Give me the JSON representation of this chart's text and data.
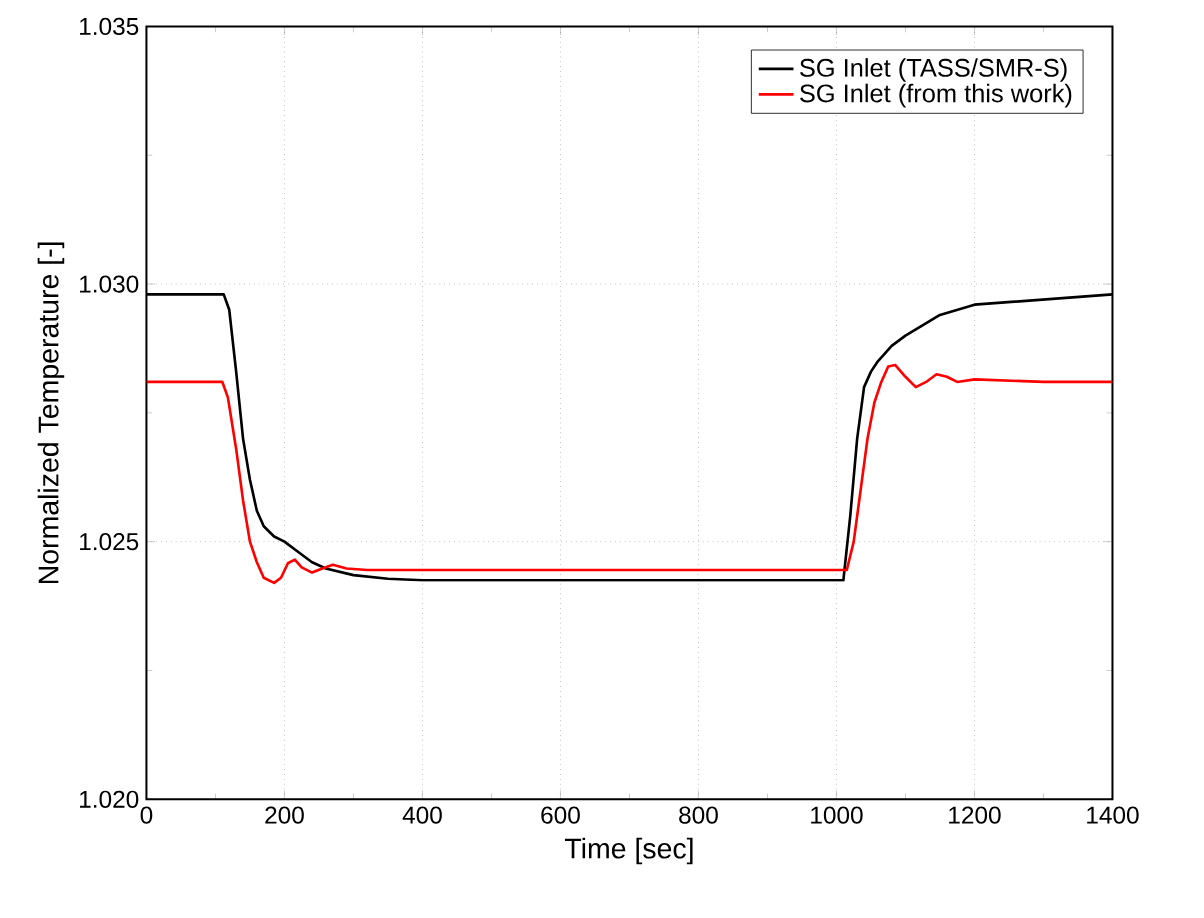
{
  "chart_data": {
    "type": "line",
    "xlabel": "Time [sec]",
    "ylabel": "Normalized Temperature [-]",
    "xlim": [
      0,
      1400
    ],
    "ylim": [
      1.02,
      1.035
    ],
    "xticks": [
      0,
      200,
      400,
      600,
      800,
      1000,
      1200,
      1400
    ],
    "yticks": [
      {
        "value": 1.02,
        "label": "1.020"
      },
      {
        "value": 1.025,
        "label": "1.025"
      },
      {
        "value": 1.03,
        "label": "1.030"
      },
      {
        "value": 1.035,
        "label": "1.035"
      }
    ],
    "grid": true,
    "legend": "top right",
    "line_style": "solid",
    "marker": "none",
    "series": [
      {
        "name": "SG Inlet (TASS/SMR-S)",
        "color": "#000000",
        "x": [
          0,
          112,
          120,
          130,
          140,
          150,
          160,
          170,
          185,
          200,
          220,
          240,
          260,
          300,
          350,
          400,
          600,
          800,
          1000,
          1010,
          1020,
          1030,
          1040,
          1050,
          1060,
          1080,
          1100,
          1150,
          1200,
          1300,
          1400
        ],
        "values": [
          1.0298,
          1.0298,
          1.0295,
          1.0283,
          1.027,
          1.0262,
          1.0256,
          1.0253,
          1.0251,
          1.025,
          1.0248,
          1.0246,
          1.02448,
          1.02435,
          1.02428,
          1.02425,
          1.02425,
          1.02425,
          1.02425,
          1.02425,
          1.0255,
          1.027,
          1.028,
          1.0283,
          1.0285,
          1.0288,
          1.029,
          1.0294,
          1.0296,
          1.0297,
          1.0298
        ]
      },
      {
        "name": "SG Inlet (from this work)",
        "color": "#ff0000",
        "x": [
          0,
          110,
          118,
          130,
          140,
          150,
          160,
          170,
          185,
          195,
          205,
          215,
          225,
          240,
          255,
          270,
          290,
          320,
          400,
          600,
          800,
          1000,
          1015,
          1025,
          1035,
          1045,
          1055,
          1065,
          1075,
          1085,
          1100,
          1115,
          1130,
          1145,
          1160,
          1175,
          1200,
          1300,
          1400
        ],
        "values": [
          1.0281,
          1.0281,
          1.0278,
          1.0268,
          1.0258,
          1.025,
          1.0246,
          1.0243,
          1.0242,
          1.0243,
          1.02458,
          1.02465,
          1.0245,
          1.0244,
          1.02448,
          1.02455,
          1.02448,
          1.02445,
          1.02445,
          1.02445,
          1.02445,
          1.02445,
          1.02445,
          1.025,
          1.026,
          1.027,
          1.0277,
          1.0281,
          1.0284,
          1.02843,
          1.0282,
          1.028,
          1.0281,
          1.02825,
          1.0282,
          1.0281,
          1.02815,
          1.0281,
          1.0281
        ]
      }
    ]
  }
}
